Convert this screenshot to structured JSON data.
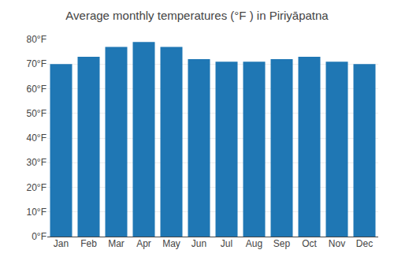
{
  "chart_data": {
    "type": "bar",
    "title": "Average monthly temperatures (°F ) in Piriyāpatna",
    "categories": [
      "Jan",
      "Feb",
      "Mar",
      "Apr",
      "May",
      "Jun",
      "Jul",
      "Aug",
      "Sep",
      "Oct",
      "Nov",
      "Dec"
    ],
    "values": [
      70,
      73,
      77,
      79,
      77,
      72,
      71,
      71,
      72,
      73,
      71,
      70
    ],
    "ylim": [
      0,
      80
    ],
    "yticks": [
      {
        "value": 0,
        "label": "0°F"
      },
      {
        "value": 10,
        "label": "10°F"
      },
      {
        "value": 20,
        "label": "20°F"
      },
      {
        "value": 30,
        "label": "30°F"
      },
      {
        "value": 40,
        "label": "40°F"
      },
      {
        "value": 50,
        "label": "50°F"
      },
      {
        "value": 60,
        "label": "60°F"
      },
      {
        "value": 70,
        "label": "70°F"
      },
      {
        "value": 80,
        "label": "80°F"
      }
    ],
    "grid": true
  }
}
